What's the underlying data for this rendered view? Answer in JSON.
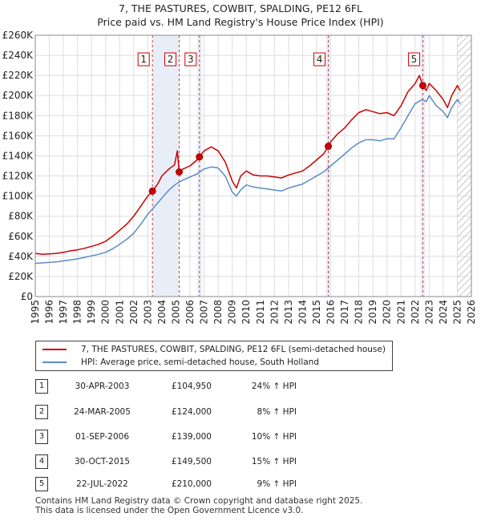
{
  "title": "7, THE PASTURES, COWBIT, SPALDING, PE12 6FL",
  "subtitle": "Price paid vs. HM Land Registry's House Price Index (HPI)",
  "chart_data": {
    "type": "line",
    "title": "7, THE PASTURES, COWBIT, SPALDING, PE12 6FL",
    "subtitle": "Price paid vs. HM Land Registry's House Price Index (HPI)",
    "xlim": [
      1995,
      2026
    ],
    "ylim": [
      0,
      260000
    ],
    "x_ticks": [
      "1995",
      "1996",
      "1997",
      "1998",
      "1999",
      "2000",
      "2001",
      "2002",
      "2003",
      "2004",
      "2005",
      "2006",
      "2007",
      "2008",
      "2009",
      "2010",
      "2011",
      "2012",
      "2013",
      "2014",
      "2015",
      "2016",
      "2017",
      "2018",
      "2019",
      "2020",
      "2021",
      "2022",
      "2023",
      "2024",
      "2025",
      "2026"
    ],
    "y_ticks": [
      {
        "value": 0,
        "label": "£0"
      },
      {
        "value": 20000,
        "label": "£20K"
      },
      {
        "value": 40000,
        "label": "£40K"
      },
      {
        "value": 60000,
        "label": "£60K"
      },
      {
        "value": 80000,
        "label": "£80K"
      },
      {
        "value": 100000,
        "label": "£100K"
      },
      {
        "value": 120000,
        "label": "£120K"
      },
      {
        "value": 140000,
        "label": "£140K"
      },
      {
        "value": 160000,
        "label": "£160K"
      },
      {
        "value": 180000,
        "label": "£180K"
      },
      {
        "value": 200000,
        "label": "£200K"
      },
      {
        "value": 220000,
        "label": "£220K"
      },
      {
        "value": 240000,
        "label": "£240K"
      },
      {
        "value": 260000,
        "label": "£260K"
      }
    ],
    "shaded_ranges": [
      [
        2003.33,
        2005.23
      ],
      [
        2006.67,
        2006.67
      ],
      [
        2015.83,
        2015.83
      ],
      [
        2022.55,
        2022.55
      ]
    ],
    "future_hatch_from": 2025.0,
    "series": [
      {
        "name": "7, THE PASTURES, COWBIT, SPALDING, PE12 6FL (semi-detached house)",
        "color": "#cc0000",
        "x": [
          1995.0,
          1995.5,
          1996.0,
          1996.5,
          1997.0,
          1997.5,
          1998.0,
          1998.5,
          1999.0,
          1999.5,
          2000.0,
          2000.5,
          2001.0,
          2001.5,
          2002.0,
          2002.5,
          2003.0,
          2003.33,
          2003.7,
          2004.0,
          2004.5,
          2004.9,
          2005.1,
          2005.23,
          2005.5,
          2006.0,
          2006.5,
          2006.67,
          2007.0,
          2007.5,
          2008.0,
          2008.5,
          2009.0,
          2009.3,
          2009.6,
          2010.0,
          2010.5,
          2011.0,
          2011.5,
          2012.0,
          2012.5,
          2013.0,
          2013.5,
          2014.0,
          2014.5,
          2015.0,
          2015.5,
          2015.83,
          2016.0,
          2016.5,
          2017.0,
          2017.5,
          2018.0,
          2018.5,
          2019.0,
          2019.5,
          2020.0,
          2020.5,
          2021.0,
          2021.5,
          2022.0,
          2022.3,
          2022.55,
          2022.8,
          2023.0,
          2023.5,
          2024.0,
          2024.3,
          2024.6,
          2025.0,
          2025.2
        ],
        "y": [
          43000,
          42000,
          42500,
          43000,
          44000,
          45500,
          46500,
          48000,
          50000,
          52000,
          55000,
          60000,
          66000,
          72000,
          80000,
          90000,
          100000,
          104950,
          112000,
          120000,
          127000,
          131000,
          145000,
          124000,
          127000,
          130000,
          136000,
          139000,
          145000,
          149000,
          145000,
          134000,
          115000,
          108000,
          120000,
          125000,
          121000,
          120000,
          120000,
          119000,
          118000,
          121000,
          123000,
          125000,
          130000,
          136000,
          142000,
          149500,
          154000,
          162000,
          168000,
          176000,
          183000,
          186000,
          184000,
          182000,
          183000,
          180000,
          190000,
          204000,
          212000,
          220000,
          210000,
          205000,
          212000,
          205000,
          196000,
          188000,
          200000,
          210000,
          205000
        ]
      },
      {
        "name": "HPI: Average price, semi-detached house, South Holland",
        "color": "#5b8cc8",
        "x": [
          1995.0,
          1995.5,
          1996.0,
          1996.5,
          1997.0,
          1997.5,
          1998.0,
          1998.5,
          1999.0,
          1999.5,
          2000.0,
          2000.5,
          2001.0,
          2001.5,
          2002.0,
          2002.5,
          2003.0,
          2003.5,
          2004.0,
          2004.5,
          2005.0,
          2005.5,
          2006.0,
          2006.5,
          2007.0,
          2007.5,
          2008.0,
          2008.5,
          2009.0,
          2009.3,
          2009.6,
          2010.0,
          2010.5,
          2011.0,
          2011.5,
          2012.0,
          2012.5,
          2013.0,
          2013.5,
          2014.0,
          2014.5,
          2015.0,
          2015.5,
          2016.0,
          2016.5,
          2017.0,
          2017.5,
          2018.0,
          2018.5,
          2019.0,
          2019.5,
          2020.0,
          2020.5,
          2021.0,
          2021.5,
          2022.0,
          2022.5,
          2022.8,
          2023.0,
          2023.5,
          2024.0,
          2024.3,
          2024.6,
          2025.0,
          2025.2
        ],
        "y": [
          33000,
          33500,
          34000,
          34500,
          35500,
          36500,
          37500,
          39000,
          40500,
          42000,
          44000,
          47500,
          52000,
          57000,
          63000,
          72000,
          82000,
          90000,
          98000,
          106000,
          112000,
          116000,
          119000,
          122000,
          127000,
          129000,
          128000,
          120000,
          104000,
          100000,
          106000,
          111000,
          109000,
          108000,
          107000,
          106000,
          105000,
          108000,
          110000,
          112000,
          116000,
          120000,
          124000,
          130000,
          136000,
          142000,
          148000,
          153000,
          156000,
          156000,
          155000,
          157000,
          157000,
          168000,
          180000,
          192000,
          196000,
          194000,
          200000,
          190000,
          184000,
          178000,
          188000,
          196000,
          192000
        ]
      }
    ],
    "sales": [
      {
        "num": "1",
        "date": "30-APR-2003",
        "x": 2003.33,
        "price": 104950,
        "price_label": "£104,950",
        "hpi": "24% ↑ HPI"
      },
      {
        "num": "2",
        "date": "24-MAR-2005",
        "x": 2005.23,
        "price": 124000,
        "price_label": "£124,000",
        "hpi": "8% ↑ HPI"
      },
      {
        "num": "3",
        "date": "01-SEP-2006",
        "x": 2006.67,
        "price": 139000,
        "price_label": "£139,000",
        "hpi": "10% ↑ HPI"
      },
      {
        "num": "4",
        "date": "30-OCT-2015",
        "x": 2015.83,
        "price": 149500,
        "price_label": "£149,500",
        "hpi": "15% ↑ HPI"
      },
      {
        "num": "5",
        "date": "22-JUL-2022",
        "x": 2022.55,
        "price": 210000,
        "price_label": "£210,000",
        "hpi": "9% ↑ HPI"
      }
    ]
  },
  "legend": {
    "property_label": "7, THE PASTURES, COWBIT, SPALDING, PE12 6FL (semi-detached house)",
    "hpi_label": "HPI: Average price, semi-detached house, South Holland"
  },
  "footer": {
    "line1": "Contains HM Land Registry data © Crown copyright and database right 2025.",
    "line2": "This data is licensed under the Open Government Licence v3.0."
  },
  "colors": {
    "property": "#cc0000",
    "hpi": "#5b8cc8",
    "shade": "#e8eef8",
    "grid": "#dddddd",
    "marker_line": "#dd3333"
  }
}
